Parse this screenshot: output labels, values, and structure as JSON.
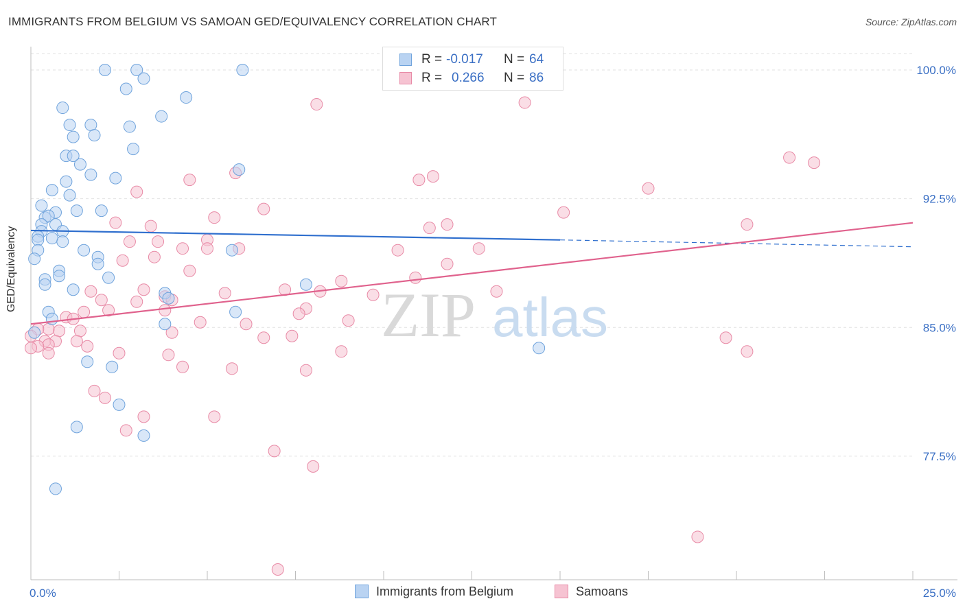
{
  "header": {
    "title": "IMMIGRANTS FROM BELGIUM VS SAMOAN GED/EQUIVALENCY CORRELATION CHART",
    "source": "Source: ZipAtlas.com"
  },
  "legend": {
    "series1": {
      "r_label": "R =",
      "r_value": "-0.017",
      "n_label": "N =",
      "n_value": "64"
    },
    "series2": {
      "r_label": "R =",
      "r_value": "0.266",
      "n_label": "N =",
      "n_value": "86"
    }
  },
  "bottom_legend": {
    "series1": "Immigrants from Belgium",
    "series2": "Samoans"
  },
  "watermark": {
    "zip": "ZIP",
    "atlas": "atlas"
  },
  "colors": {
    "blue": "#6fa3dc",
    "blue_fill": "#b9d3f2",
    "blue_line": "#2f6fce",
    "pink": "#e88aa6",
    "pink_fill": "#f6c3d2",
    "pink_line": "#e0628d",
    "tick_label": "#3a6fc4",
    "grid": "#e2e2e2"
  },
  "chart_data": {
    "type": "scatter",
    "title": "IMMIGRANTS FROM BELGIUM VS SAMOAN GED/EQUIVALENCY CORRELATION CHART",
    "xlabel": "",
    "ylabel": "GED/Equivalency",
    "xlim": [
      0,
      25
    ],
    "ylim": [
      70.3,
      101.2
    ],
    "x_tick_labels": [
      {
        "value": 0,
        "label": "0.0%"
      },
      {
        "value": 25,
        "label": "25.0%"
      }
    ],
    "y_tick_labels": [
      {
        "value": 100.0,
        "label": "100.0%"
      },
      {
        "value": 92.5,
        "label": "92.5%"
      },
      {
        "value": 85.0,
        "label": "85.0%"
      },
      {
        "value": 77.5,
        "label": "77.5%"
      }
    ],
    "series": [
      {
        "name": "Immigrants from Belgium",
        "color": "blue",
        "r": -0.017,
        "n": 64,
        "trend": {
          "x": [
            0.0,
            15.0
          ],
          "y": [
            90.65,
            90.1
          ],
          "dashed_to_x": 25.0,
          "dashed_y": 89.7
        },
        "points": [
          [
            2.1,
            100.0
          ],
          [
            3.0,
            100.0
          ],
          [
            6.0,
            100.0
          ],
          [
            3.2,
            99.5
          ],
          [
            2.7,
            98.9
          ],
          [
            4.4,
            98.4
          ],
          [
            0.9,
            97.8
          ],
          [
            3.7,
            97.3
          ],
          [
            1.1,
            96.8
          ],
          [
            1.7,
            96.8
          ],
          [
            2.8,
            96.7
          ],
          [
            1.2,
            96.1
          ],
          [
            1.8,
            96.2
          ],
          [
            2.9,
            95.4
          ],
          [
            1.0,
            95.0
          ],
          [
            1.2,
            95.0
          ],
          [
            1.4,
            94.5
          ],
          [
            5.9,
            94.2
          ],
          [
            1.7,
            93.9
          ],
          [
            2.4,
            93.7
          ],
          [
            1.0,
            93.5
          ],
          [
            0.6,
            93.0
          ],
          [
            1.1,
            92.7
          ],
          [
            0.3,
            92.1
          ],
          [
            1.3,
            91.8
          ],
          [
            2.0,
            91.8
          ],
          [
            0.7,
            91.7
          ],
          [
            0.4,
            91.4
          ],
          [
            0.5,
            91.5
          ],
          [
            0.3,
            91.0
          ],
          [
            0.7,
            91.0
          ],
          [
            0.3,
            90.6
          ],
          [
            0.9,
            90.6
          ],
          [
            0.2,
            90.3
          ],
          [
            0.6,
            90.2
          ],
          [
            0.9,
            90.0
          ],
          [
            0.2,
            90.1
          ],
          [
            0.2,
            89.5
          ],
          [
            1.5,
            89.5
          ],
          [
            5.7,
            89.5
          ],
          [
            1.9,
            89.1
          ],
          [
            0.1,
            89.0
          ],
          [
            1.9,
            88.7
          ],
          [
            0.8,
            88.3
          ],
          [
            2.2,
            87.9
          ],
          [
            0.4,
            87.8
          ],
          [
            0.8,
            88.0
          ],
          [
            0.4,
            87.5
          ],
          [
            7.8,
            87.5
          ],
          [
            1.2,
            87.2
          ],
          [
            3.8,
            87.0
          ],
          [
            3.9,
            86.7
          ],
          [
            0.5,
            85.9
          ],
          [
            5.8,
            85.9
          ],
          [
            0.6,
            85.5
          ],
          [
            3.8,
            85.2
          ],
          [
            0.1,
            84.7
          ],
          [
            14.4,
            83.8
          ],
          [
            1.6,
            83.0
          ],
          [
            2.3,
            82.7
          ],
          [
            2.5,
            80.5
          ],
          [
            1.3,
            79.2
          ],
          [
            3.2,
            78.7
          ],
          [
            0.7,
            75.6
          ]
        ]
      },
      {
        "name": "Samoans",
        "color": "pink",
        "r": 0.266,
        "n": 86,
        "trend": {
          "x": [
            0.0,
            25.0
          ],
          "y": [
            85.2,
            91.1
          ]
        },
        "points": [
          [
            8.1,
            98.0
          ],
          [
            14.0,
            98.1
          ],
          [
            21.5,
            94.9
          ],
          [
            22.2,
            94.6
          ],
          [
            5.8,
            94.0
          ],
          [
            4.5,
            93.6
          ],
          [
            11.0,
            93.6
          ],
          [
            11.4,
            93.8
          ],
          [
            17.5,
            93.1
          ],
          [
            3.0,
            92.9
          ],
          [
            6.6,
            91.9
          ],
          [
            15.1,
            91.7
          ],
          [
            5.2,
            91.4
          ],
          [
            2.4,
            91.1
          ],
          [
            3.4,
            90.9
          ],
          [
            11.3,
            90.8
          ],
          [
            11.8,
            91.0
          ],
          [
            20.3,
            91.0
          ],
          [
            5.0,
            90.1
          ],
          [
            2.8,
            90.0
          ],
          [
            3.6,
            90.0
          ],
          [
            4.3,
            89.6
          ],
          [
            5.0,
            89.6
          ],
          [
            5.9,
            89.6
          ],
          [
            10.4,
            89.5
          ],
          [
            12.7,
            89.6
          ],
          [
            3.5,
            89.1
          ],
          [
            2.6,
            88.9
          ],
          [
            11.8,
            88.7
          ],
          [
            4.5,
            88.3
          ],
          [
            10.9,
            87.9
          ],
          [
            8.8,
            87.7
          ],
          [
            3.2,
            87.2
          ],
          [
            7.2,
            87.2
          ],
          [
            1.7,
            87.1
          ],
          [
            5.5,
            87.0
          ],
          [
            8.2,
            87.1
          ],
          [
            13.2,
            87.1
          ],
          [
            9.7,
            86.9
          ],
          [
            3.8,
            86.8
          ],
          [
            2.0,
            86.6
          ],
          [
            4.0,
            86.6
          ],
          [
            3.0,
            86.5
          ],
          [
            2.2,
            86.0
          ],
          [
            1.5,
            85.9
          ],
          [
            3.8,
            86.0
          ],
          [
            7.8,
            86.1
          ],
          [
            7.6,
            85.8
          ],
          [
            1.0,
            85.6
          ],
          [
            1.2,
            85.5
          ],
          [
            4.8,
            85.3
          ],
          [
            6.1,
            85.2
          ],
          [
            9.0,
            85.4
          ],
          [
            0.5,
            84.9
          ],
          [
            0.2,
            84.9
          ],
          [
            0.8,
            84.8
          ],
          [
            1.4,
            84.8
          ],
          [
            4.0,
            84.7
          ],
          [
            0.7,
            84.2
          ],
          [
            6.6,
            84.4
          ],
          [
            7.4,
            84.5
          ],
          [
            19.7,
            84.4
          ],
          [
            0.4,
            84.2
          ],
          [
            1.3,
            84.2
          ],
          [
            0.5,
            84.0
          ],
          [
            0.2,
            83.9
          ],
          [
            1.6,
            83.9
          ],
          [
            0.0,
            83.8
          ],
          [
            2.5,
            83.5
          ],
          [
            3.9,
            83.4
          ],
          [
            8.8,
            83.6
          ],
          [
            0.5,
            83.5
          ],
          [
            20.3,
            83.6
          ],
          [
            4.3,
            82.7
          ],
          [
            5.7,
            82.6
          ],
          [
            7.8,
            82.5
          ],
          [
            1.8,
            81.3
          ],
          [
            2.1,
            80.9
          ],
          [
            3.2,
            79.8
          ],
          [
            5.2,
            79.8
          ],
          [
            2.7,
            79.0
          ],
          [
            6.9,
            77.8
          ],
          [
            8.0,
            76.9
          ],
          [
            18.9,
            72.8
          ],
          [
            7.0,
            70.9
          ],
          [
            0.0,
            84.5
          ]
        ]
      }
    ]
  }
}
